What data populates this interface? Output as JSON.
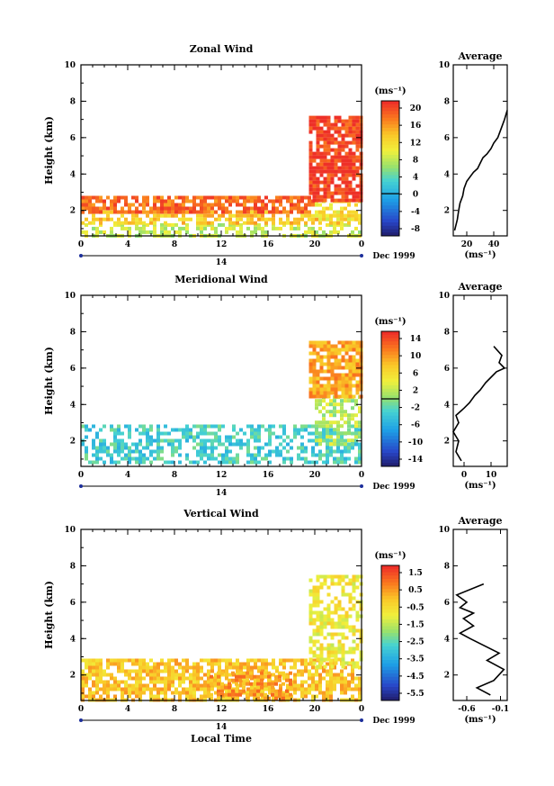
{
  "chart_data": [
    {
      "type": "heatmap",
      "title": "Zonal Wind",
      "ylabel": "Height (km)",
      "xlabel": "",
      "units": "(ms⁻¹)",
      "xlim": [
        0,
        24
      ],
      "ylim": [
        0.6,
        10
      ],
      "xticks": [
        "0",
        "4",
        "8",
        "12",
        "16",
        "20",
        "0"
      ],
      "yticks": [
        "2",
        "4",
        "6",
        "8",
        "10"
      ],
      "date_label": "14",
      "date_caption": "Dec 1999",
      "colorbar": {
        "ticks": [
          "20",
          "16",
          "12",
          "8",
          "4",
          "0",
          "-4",
          "-8"
        ],
        "min": -10,
        "max": 22,
        "zero_line": 0
      },
      "regions": [
        {
          "x0": 0,
          "x1": 24,
          "y0": 0.7,
          "y1": 1.3,
          "value": 9,
          "coverage": 0.55
        },
        {
          "x0": 0,
          "x1": 24,
          "y0": 1.3,
          "y1": 2.0,
          "value": 14,
          "coverage": 0.6
        },
        {
          "x0": 0,
          "x1": 20,
          "y0": 2.0,
          "y1": 2.8,
          "value": 19,
          "coverage": 0.75
        },
        {
          "x0": 20,
          "x1": 24,
          "y0": 1.5,
          "y1": 2.6,
          "value": 12,
          "coverage": 0.6
        },
        {
          "x0": 19.5,
          "x1": 24,
          "y0": 2.6,
          "y1": 7.2,
          "value": 21,
          "coverage": 0.8
        }
      ],
      "profile": {
        "title": "Average",
        "xlabel": "(ms⁻¹)",
        "xticks": [
          "20",
          "40"
        ],
        "xlim": [
          10,
          50
        ],
        "x": [
          11,
          13,
          14,
          15,
          17,
          18,
          20,
          22,
          25,
          28,
          30,
          32,
          35,
          38,
          40,
          43,
          45,
          48,
          50
        ],
        "y": [
          0.9,
          1.5,
          2.0,
          2.4,
          2.8,
          3.2,
          3.6,
          3.8,
          4.1,
          4.3,
          4.6,
          4.9,
          5.1,
          5.4,
          5.7,
          6.0,
          6.4,
          7.0,
          7.5
        ]
      }
    },
    {
      "type": "heatmap",
      "title": "Meridional Wind",
      "ylabel": "Height (km)",
      "xlabel": "",
      "units": "(ms⁻¹)",
      "xlim": [
        0,
        24
      ],
      "ylim": [
        0.6,
        10
      ],
      "xticks": [
        "0",
        "4",
        "8",
        "12",
        "16",
        "20",
        "0"
      ],
      "yticks": [
        "2",
        "4",
        "6",
        "8",
        "10"
      ],
      "date_label": "14",
      "date_caption": "Dec 1999",
      "colorbar": {
        "ticks": [
          "14",
          "10",
          "6",
          "2",
          "-2",
          "-6",
          "-10",
          "-14"
        ],
        "min": -16,
        "max": 16,
        "zero_line": 0
      },
      "regions": [
        {
          "x0": 0,
          "x1": 24,
          "y0": 0.8,
          "y1": 2.9,
          "value": -3,
          "coverage": 0.55
        },
        {
          "x0": 20,
          "x1": 24,
          "y0": 1.8,
          "y1": 4.5,
          "value": 2,
          "coverage": 0.5
        },
        {
          "x0": 19.5,
          "x1": 24,
          "y0": 4.5,
          "y1": 7.5,
          "value": 10,
          "coverage": 0.8
        }
      ],
      "profile": {
        "title": "Average",
        "xlabel": "(ms⁻¹)",
        "xticks": [
          "0",
          "10"
        ],
        "xlim": [
          -4,
          16
        ],
        "x": [
          -1,
          -3,
          -2,
          -4,
          -2,
          -3,
          0,
          2,
          4,
          6,
          8,
          10,
          12,
          15,
          13,
          14,
          11
        ],
        "y": [
          0.9,
          1.4,
          2.0,
          2.5,
          3.0,
          3.4,
          3.8,
          4.1,
          4.5,
          4.8,
          5.2,
          5.5,
          5.8,
          6.0,
          6.3,
          6.7,
          7.2
        ]
      }
    },
    {
      "type": "heatmap",
      "title": "Vertical Wind",
      "ylabel": "Height (km)",
      "xlabel": "Local Time",
      "units": "(ms⁻¹)",
      "xlim": [
        0,
        24
      ],
      "ylim": [
        0.6,
        10
      ],
      "xticks": [
        "0",
        "4",
        "8",
        "12",
        "16",
        "20",
        "0"
      ],
      "yticks": [
        "2",
        "4",
        "6",
        "8",
        "10"
      ],
      "date_label": "14",
      "date_caption": "Dec 1999",
      "colorbar": {
        "ticks": [
          "1.5",
          "0.5",
          "-0.5",
          "-1.5",
          "-2.5",
          "-3.5",
          "-4.5",
          "-5.5"
        ],
        "min": -6.5,
        "max": 2.5,
        "zero_line": null
      },
      "regions": [
        {
          "x0": 0,
          "x1": 24,
          "y0": 0.7,
          "y1": 2.9,
          "value": 0.3,
          "coverage": 0.7
        },
        {
          "x0": 11,
          "x1": 18,
          "y0": 0.7,
          "y1": 2.2,
          "value": 0.9,
          "coverage": 0.6
        },
        {
          "x0": 19.5,
          "x1": 24,
          "y0": 2.5,
          "y1": 7.5,
          "value": -0.5,
          "coverage": 0.55
        }
      ],
      "profile": {
        "title": "Average",
        "xlabel": "(ms⁻¹)",
        "xticks": [
          "-0.6",
          "-0.1"
        ],
        "xlim": [
          -0.8,
          0.0
        ],
        "x": [
          -0.25,
          -0.45,
          -0.2,
          -0.05,
          -0.3,
          -0.12,
          -0.55,
          -0.7,
          -0.5,
          -0.65,
          -0.5,
          -0.7,
          -0.6,
          -0.75,
          -0.35
        ],
        "y": [
          0.9,
          1.3,
          1.7,
          2.3,
          2.8,
          3.2,
          4.0,
          4.3,
          4.7,
          5.1,
          5.4,
          5.7,
          6.0,
          6.4,
          7.0
        ]
      }
    }
  ]
}
